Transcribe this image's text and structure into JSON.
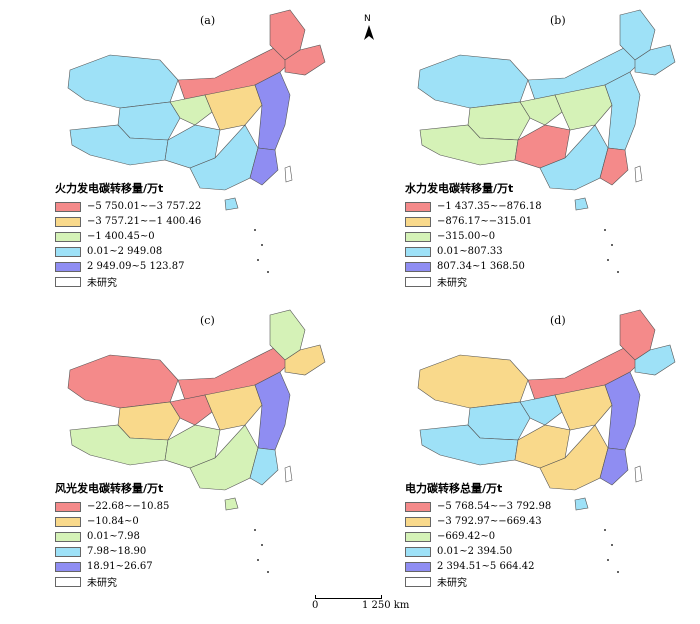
{
  "north_label": "N",
  "scale": {
    "zero": "0",
    "distance": "1 250 km"
  },
  "unstudied_color": "#ffffff",
  "panels": [
    {
      "label": "(a)",
      "legend_title": "火力发电碳转移量/万t",
      "classes": [
        {
          "range": "−5 750.01~−3 757.22",
          "color": "#f48a8a"
        },
        {
          "range": "−3 757.21~−1 400.46",
          "color": "#f9d98b"
        },
        {
          "range": "−1 400.45~0",
          "color": "#d5f2b7"
        },
        {
          "range": "0.01~2 949.08",
          "color": "#9ee1f7"
        },
        {
          "range": "2 949.09~5 123.87",
          "color": "#8f8df2"
        }
      ],
      "unstudied_label": "未研究",
      "region_classes": {
        "west_xinjiang": 3,
        "north_inner_mongolia": 0,
        "tibet": 3,
        "northeast": 0,
        "heilongjiang": 0,
        "qinghai": 3,
        "central_north": 1,
        "east_coast": 4,
        "south": 3,
        "sichuan": 3,
        "southeast": 4,
        "hainan": 3,
        "taiwan": 5,
        "gansu": 2
      }
    },
    {
      "label": "(b)",
      "legend_title": "水力发电碳转移量/万t",
      "classes": [
        {
          "range": "−1 437.35~−876.18",
          "color": "#f48a8a"
        },
        {
          "range": "−876.17~−315.01",
          "color": "#f9d98b"
        },
        {
          "range": "−315.00~0",
          "color": "#d5f2b7"
        },
        {
          "range": "0.01~807.33",
          "color": "#9ee1f7"
        },
        {
          "range": "807.34~1 368.50",
          "color": "#8f8df2"
        }
      ],
      "unstudied_label": "未研究",
      "region_classes": {
        "west_xinjiang": 3,
        "north_inner_mongolia": 3,
        "tibet": 2,
        "northeast": 3,
        "heilongjiang": 3,
        "qinghai": 2,
        "central_north": 2,
        "east_coast": 3,
        "south": 3,
        "sichuan": 0,
        "southeast": 0,
        "hainan": 3,
        "taiwan": 5,
        "gansu": 2
      }
    },
    {
      "label": "(c)",
      "legend_title": "风光发电碳转移量/万t",
      "classes": [
        {
          "range": "−22.68~−10.85",
          "color": "#f48a8a"
        },
        {
          "range": "−10.84~0",
          "color": "#f9d98b"
        },
        {
          "range": "0.01~7.98",
          "color": "#d5f2b7"
        },
        {
          "range": "7.98~18.90",
          "color": "#9ee1f7"
        },
        {
          "range": "18.91~26.67",
          "color": "#8f8df2"
        }
      ],
      "unstudied_label": "未研究",
      "region_classes": {
        "west_xinjiang": 0,
        "north_inner_mongolia": 0,
        "tibet": 2,
        "northeast": 1,
        "heilongjiang": 2,
        "qinghai": 1,
        "central_north": 1,
        "east_coast": 4,
        "south": 2,
        "sichuan": 2,
        "southeast": 3,
        "hainan": 2,
        "taiwan": 5,
        "gansu": 0
      }
    },
    {
      "label": "(d)",
      "legend_title": "电力碳转移总量/万t",
      "classes": [
        {
          "range": "−5 768.54~−3 792.98",
          "color": "#f48a8a"
        },
        {
          "range": "−3 792.97~−669.43",
          "color": "#f9d98b"
        },
        {
          "range": "−669.42~0",
          "color": "#d5f2b7"
        },
        {
          "range": "0.01~2 394.50",
          "color": "#9ee1f7"
        },
        {
          "range": "2 394.51~5 664.42",
          "color": "#8f8df2"
        }
      ],
      "unstudied_label": "未研究",
      "region_classes": {
        "west_xinjiang": 1,
        "north_inner_mongolia": 0,
        "tibet": 3,
        "northeast": 3,
        "heilongjiang": 0,
        "qinghai": 3,
        "central_north": 1,
        "east_coast": 4,
        "south": 1,
        "sichuan": 1,
        "southeast": 4,
        "hainan": 3,
        "taiwan": 5,
        "gansu": 3
      }
    }
  ]
}
